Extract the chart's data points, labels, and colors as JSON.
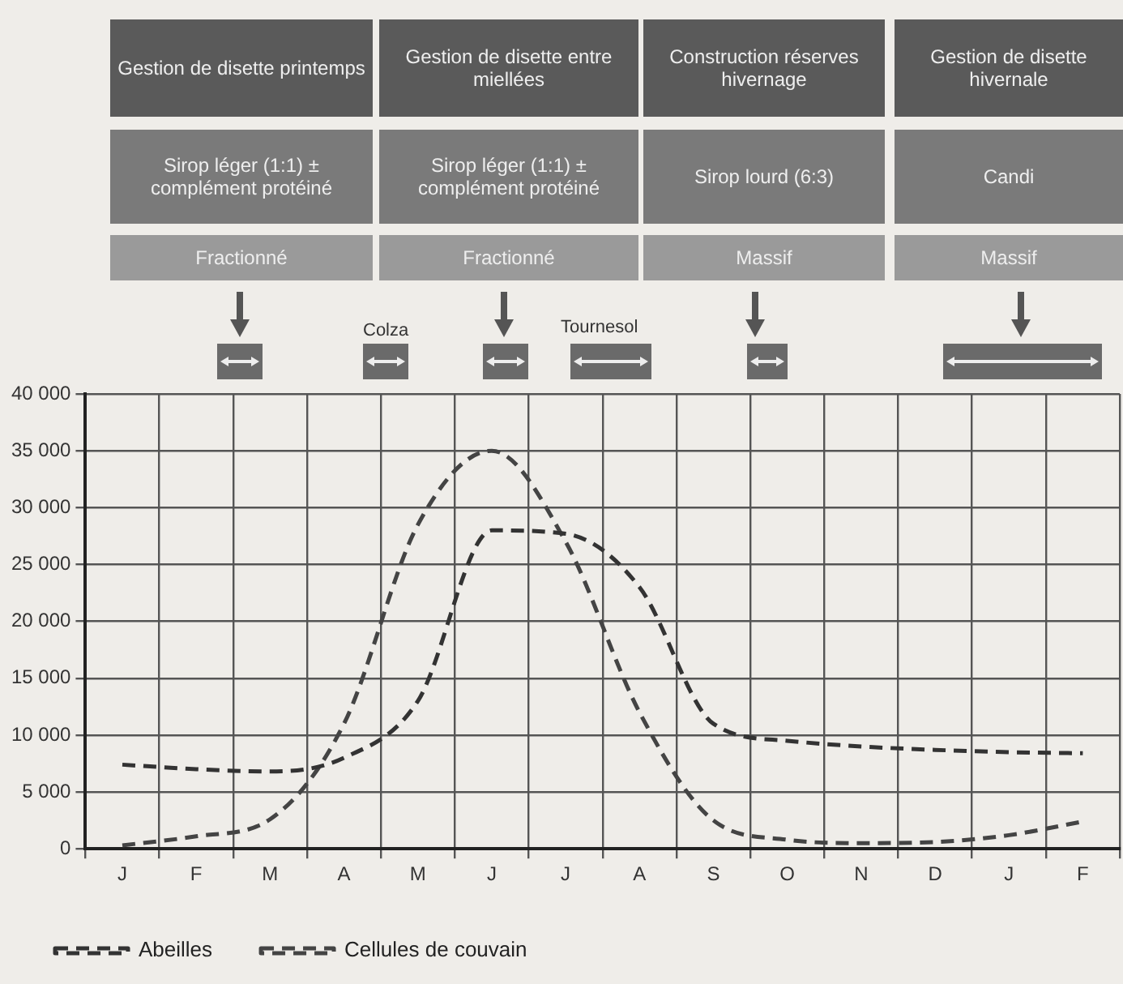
{
  "chart_data": {
    "type": "line",
    "annotations": [
      "Gestion de disette printemps",
      "Gestion de disette entre miellées",
      "Construction réserves hivernage",
      "Gestion de disette hivernale",
      "Sirop léger (1:1) ± complément protéiné",
      "Sirop léger (1:1) ± complément protéiné",
      "Sirop lourd (6:3)",
      "Candi",
      "Fractionné",
      "Fractionné",
      "Massif",
      "Massif",
      "Colza",
      "Tournesol"
    ],
    "categories": [
      "J",
      "F",
      "M",
      "A",
      "M",
      "J",
      "J",
      "A",
      "S",
      "O",
      "N",
      "D",
      "J",
      "F"
    ],
    "ylim": [
      0,
      40000
    ],
    "yticks": [
      0,
      {
        "value": 5000,
        "label": "5 000"
      },
      {
        "value": 10000,
        "label": "10 000"
      },
      {
        "value": 15000,
        "label": "15 000"
      },
      {
        "value": 20000,
        "label": "20 000"
      },
      {
        "value": 25000,
        "label": "25 000"
      },
      {
        "value": 30000,
        "label": "30 000"
      },
      {
        "value": 35000,
        "label": "35 000"
      },
      {
        "value": 40000,
        "label": "40 000"
      }
    ],
    "grid": true,
    "legend": "bottom left",
    "line_style": "dashed",
    "marker": "none",
    "series": [
      {
        "name": "Abeilles",
        "color": "#333333",
        "values": [
          7400,
          7000,
          6800,
          8000,
          13000,
          28000,
          27700,
          23000,
          11000,
          9500,
          9000,
          8700,
          8500,
          8400
        ]
      },
      {
        "name": "Cellules de couvain",
        "color": "#444444",
        "values": [
          300,
          1100,
          2600,
          11000,
          28500,
          35000,
          27000,
          12000,
          2500,
          800,
          500,
          600,
          1200,
          2400
        ]
      }
    ]
  }
}
